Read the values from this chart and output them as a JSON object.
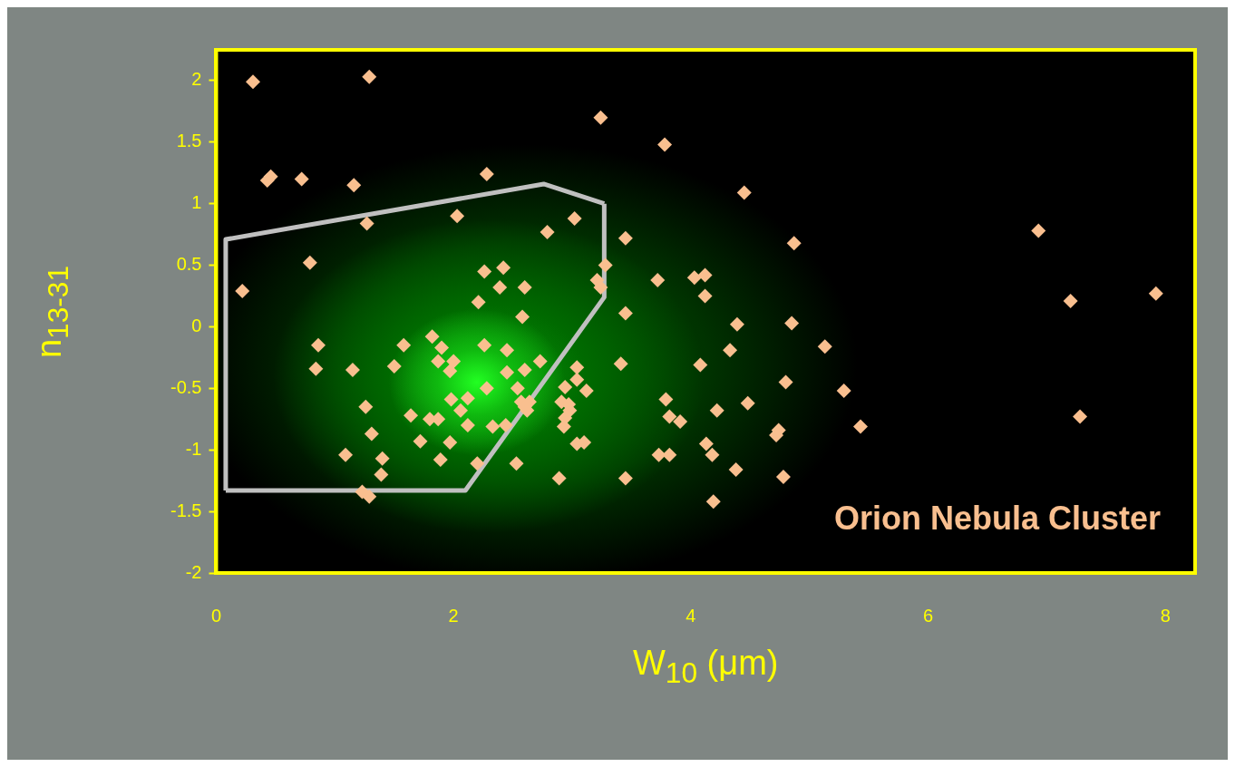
{
  "chart_data": {
    "type": "scatter",
    "xlabel": "W$_{10}$ (μm)",
    "ylabel": "n$_{13-31}$",
    "annotations": [
      "Orion Nebula Cluster"
    ],
    "xlim": [
      0,
      8.25
    ],
    "ylim": [
      -2,
      2.25
    ],
    "xticks": [
      0,
      2,
      4,
      6,
      8
    ],
    "yticks": [
      -2,
      -1.5,
      -1,
      -0.5,
      0,
      0.5,
      1,
      1.5,
      2
    ],
    "grid": false,
    "marker": "diamond",
    "series": [
      {
        "color": "#f9bf8f",
        "x": [
          0.31,
          1.29,
          3.24,
          3.78,
          0.46,
          0.43,
          0.72,
          1.16,
          2.28,
          4.45,
          1.27,
          2.03,
          3.02,
          2.79,
          3.45,
          0.79,
          0.22,
          2.26,
          2.42,
          2.39,
          2.6,
          3.28,
          3.21,
          3.24,
          2.21,
          2.58,
          3.45,
          3.72,
          4.03,
          4.12,
          4.12,
          4.39,
          4.85,
          4.87,
          6.93,
          7.2,
          7.92,
          0.86,
          0.84,
          1.15,
          1.58,
          1.5,
          1.82,
          1.9,
          1.87,
          2.0,
          1.97,
          2.26,
          2.45,
          2.45,
          2.6,
          2.73,
          2.28,
          2.54,
          1.98,
          2.12,
          2.06,
          2.57,
          2.62,
          2.64,
          3.04,
          3.04,
          2.94,
          3.12,
          2.91,
          2.98,
          2.94,
          2.93,
          3.1,
          3.04,
          3.41,
          3.45,
          2.89,
          2.53,
          2.2,
          1.89,
          1.97,
          1.72,
          1.4,
          1.39,
          1.31,
          1.09,
          1.26,
          1.64,
          1.8,
          1.87,
          2.12,
          2.33,
          2.44,
          1.23,
          1.29,
          2.6,
          2.97,
          5.13,
          4.33,
          4.08,
          4.8,
          5.29,
          3.79,
          4.22,
          4.48,
          3.82,
          3.91,
          4.74,
          4.72,
          5.43,
          7.28,
          4.13,
          4.18,
          3.73,
          3.82,
          4.38,
          4.78,
          4.19
        ],
        "values": [
          1.99,
          2.03,
          1.7,
          1.48,
          1.22,
          1.19,
          1.2,
          1.15,
          1.24,
          1.09,
          0.84,
          0.9,
          0.88,
          0.77,
          0.72,
          0.52,
          0.29,
          0.45,
          0.48,
          0.32,
          0.32,
          0.5,
          0.38,
          0.32,
          0.2,
          0.08,
          0.11,
          0.38,
          0.4,
          0.42,
          0.25,
          0.02,
          0.03,
          0.68,
          0.78,
          0.21,
          0.27,
          -0.15,
          -0.34,
          -0.35,
          -0.15,
          -0.32,
          -0.08,
          -0.17,
          -0.28,
          -0.28,
          -0.36,
          -0.15,
          -0.19,
          -0.37,
          -0.35,
          -0.28,
          -0.5,
          -0.5,
          -0.59,
          -0.58,
          -0.68,
          -0.61,
          -0.68,
          -0.61,
          -0.33,
          -0.43,
          -0.49,
          -0.52,
          -0.61,
          -0.68,
          -0.74,
          -0.81,
          -0.94,
          -0.95,
          -0.3,
          -1.23,
          -1.23,
          -1.11,
          -1.11,
          -1.08,
          -0.94,
          -0.93,
          -1.07,
          -1.2,
          -0.87,
          -1.04,
          -0.65,
          -0.72,
          -0.75,
          -0.75,
          -0.8,
          -0.81,
          -0.8,
          -1.34,
          -1.38,
          -0.65,
          -0.63,
          -0.16,
          -0.19,
          -0.31,
          -0.45,
          -0.52,
          -0.59,
          -0.68,
          -0.62,
          -0.73,
          -0.77,
          -0.84,
          -0.88,
          -0.81,
          -0.73,
          -0.95,
          -1.04,
          -1.04,
          -1.04,
          -1.16,
          -1.22,
          -1.42
        ]
      },
      {
        "type": "line",
        "color": "#c0c0c0",
        "marker": "none",
        "x": [
          0.08,
          0.08,
          2.76,
          3.27
        ],
        "values": [
          -1.33,
          0.71,
          1.16,
          1.0
        ]
      },
      {
        "type": "line",
        "color": "#c0c0c0",
        "marker": "none",
        "x": [
          0.08,
          2.1,
          3.27,
          3.27
        ],
        "values": [
          -1.33,
          -1.33,
          0.24,
          1.0
        ]
      }
    ]
  }
}
